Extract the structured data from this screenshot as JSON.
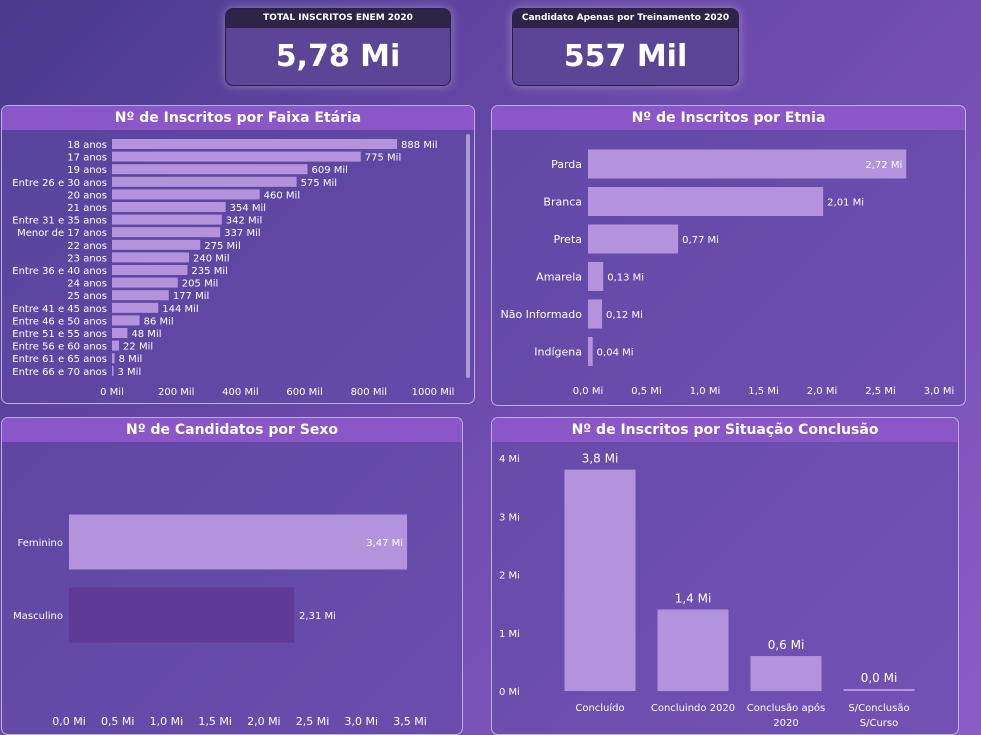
{
  "kpis": {
    "total": {
      "title": "TOTAL INSCRITOS ENEM 2020",
      "value": "5,78 Mi"
    },
    "treino": {
      "title": "Candidato Apenas por Treinamento 2020",
      "value": "557 Mil"
    }
  },
  "colors": {
    "bar": "#b394dc",
    "bar_dark": "#5e3a96",
    "title_bar": "#8a56c8"
  },
  "chart_data": [
    {
      "type": "bar",
      "orientation": "horizontal",
      "title": "Nº de Inscritos por Faixa Etária",
      "categories": [
        "18 anos",
        "17 anos",
        "19 anos",
        "Entre 26 e 30 anos",
        "20 anos",
        "21 anos",
        "Entre 31 e 35 anos",
        "Menor de 17 anos",
        "22 anos",
        "23 anos",
        "Entre 36 e 40 anos",
        "24 anos",
        "25 anos",
        "Entre 41 e 45 anos",
        "Entre 46 e 50 anos",
        "Entre 51 e 55 anos",
        "Entre 56 e 60 anos",
        "Entre 61 e 65 anos",
        "Entre 66 e 70 anos"
      ],
      "values": [
        888,
        775,
        609,
        575,
        460,
        354,
        342,
        337,
        275,
        240,
        235,
        205,
        177,
        144,
        86,
        48,
        22,
        8,
        3
      ],
      "data_labels": [
        "888 Mil",
        "775 Mil",
        "609 Mil",
        "575 Mil",
        "460 Mil",
        "354 Mil",
        "342 Mil",
        "337 Mil",
        "275 Mil",
        "240 Mil",
        "235 Mil",
        "205 Mil",
        "177 Mil",
        "144 Mil",
        "86 Mil",
        "48 Mil",
        "22 Mil",
        "8 Mil",
        "3 Mil"
      ],
      "xlim": [
        0,
        1000
      ],
      "ticks": [
        "0 Mil",
        "200 Mil",
        "400 Mil",
        "600 Mil",
        "800 Mil",
        "1000 Mil"
      ]
    },
    {
      "type": "bar",
      "orientation": "horizontal",
      "title": "Nº de Inscritos por Etnia",
      "categories": [
        "Parda",
        "Branca",
        "Preta",
        "Amarela",
        "Não Informado",
        "Indígena"
      ],
      "values": [
        2.72,
        2.01,
        0.77,
        0.13,
        0.12,
        0.04
      ],
      "data_labels": [
        "2,72 Mi",
        "2,01 Mi",
        "0,77 Mi",
        "0,13 Mi",
        "0,12 Mi",
        "0,04 Mi"
      ],
      "xlim": [
        0,
        3.0
      ],
      "ticks": [
        "0,0 Mi",
        "0,5 Mi",
        "1,0 Mi",
        "1,5 Mi",
        "2,0 Mi",
        "2,5 Mi",
        "3,0 Mi"
      ]
    },
    {
      "type": "bar",
      "orientation": "horizontal",
      "title": "Nº de Candidatos por Sexo",
      "categories": [
        "Feminino",
        "Masculino"
      ],
      "values": [
        3.47,
        2.31
      ],
      "data_labels": [
        "3,47 Mi",
        "2,31 Mi"
      ],
      "xlim": [
        0,
        3.5
      ],
      "ticks": [
        "0,0 Mi",
        "0,5 Mi",
        "1,0 Mi",
        "1,5 Mi",
        "2,0 Mi",
        "2,5 Mi",
        "3,0 Mi",
        "3,5 Mi"
      ]
    },
    {
      "type": "bar",
      "orientation": "vertical",
      "title": "Nº de Inscritos por Situação Conclusão",
      "categories": [
        "Concluído",
        "Concluindo 2020",
        "Conclusão após 2020",
        "S/Conclusão S/Curso"
      ],
      "values": [
        3.8,
        1.4,
        0.6,
        0.0
      ],
      "data_labels": [
        "3,8 Mi",
        "1,4 Mi",
        "0,6 Mi",
        "0,0 Mi"
      ],
      "ylim": [
        0,
        4
      ],
      "ticks": [
        "0 Mi",
        "1 Mi",
        "2 Mi",
        "3 Mi",
        "4 Mi"
      ]
    }
  ]
}
